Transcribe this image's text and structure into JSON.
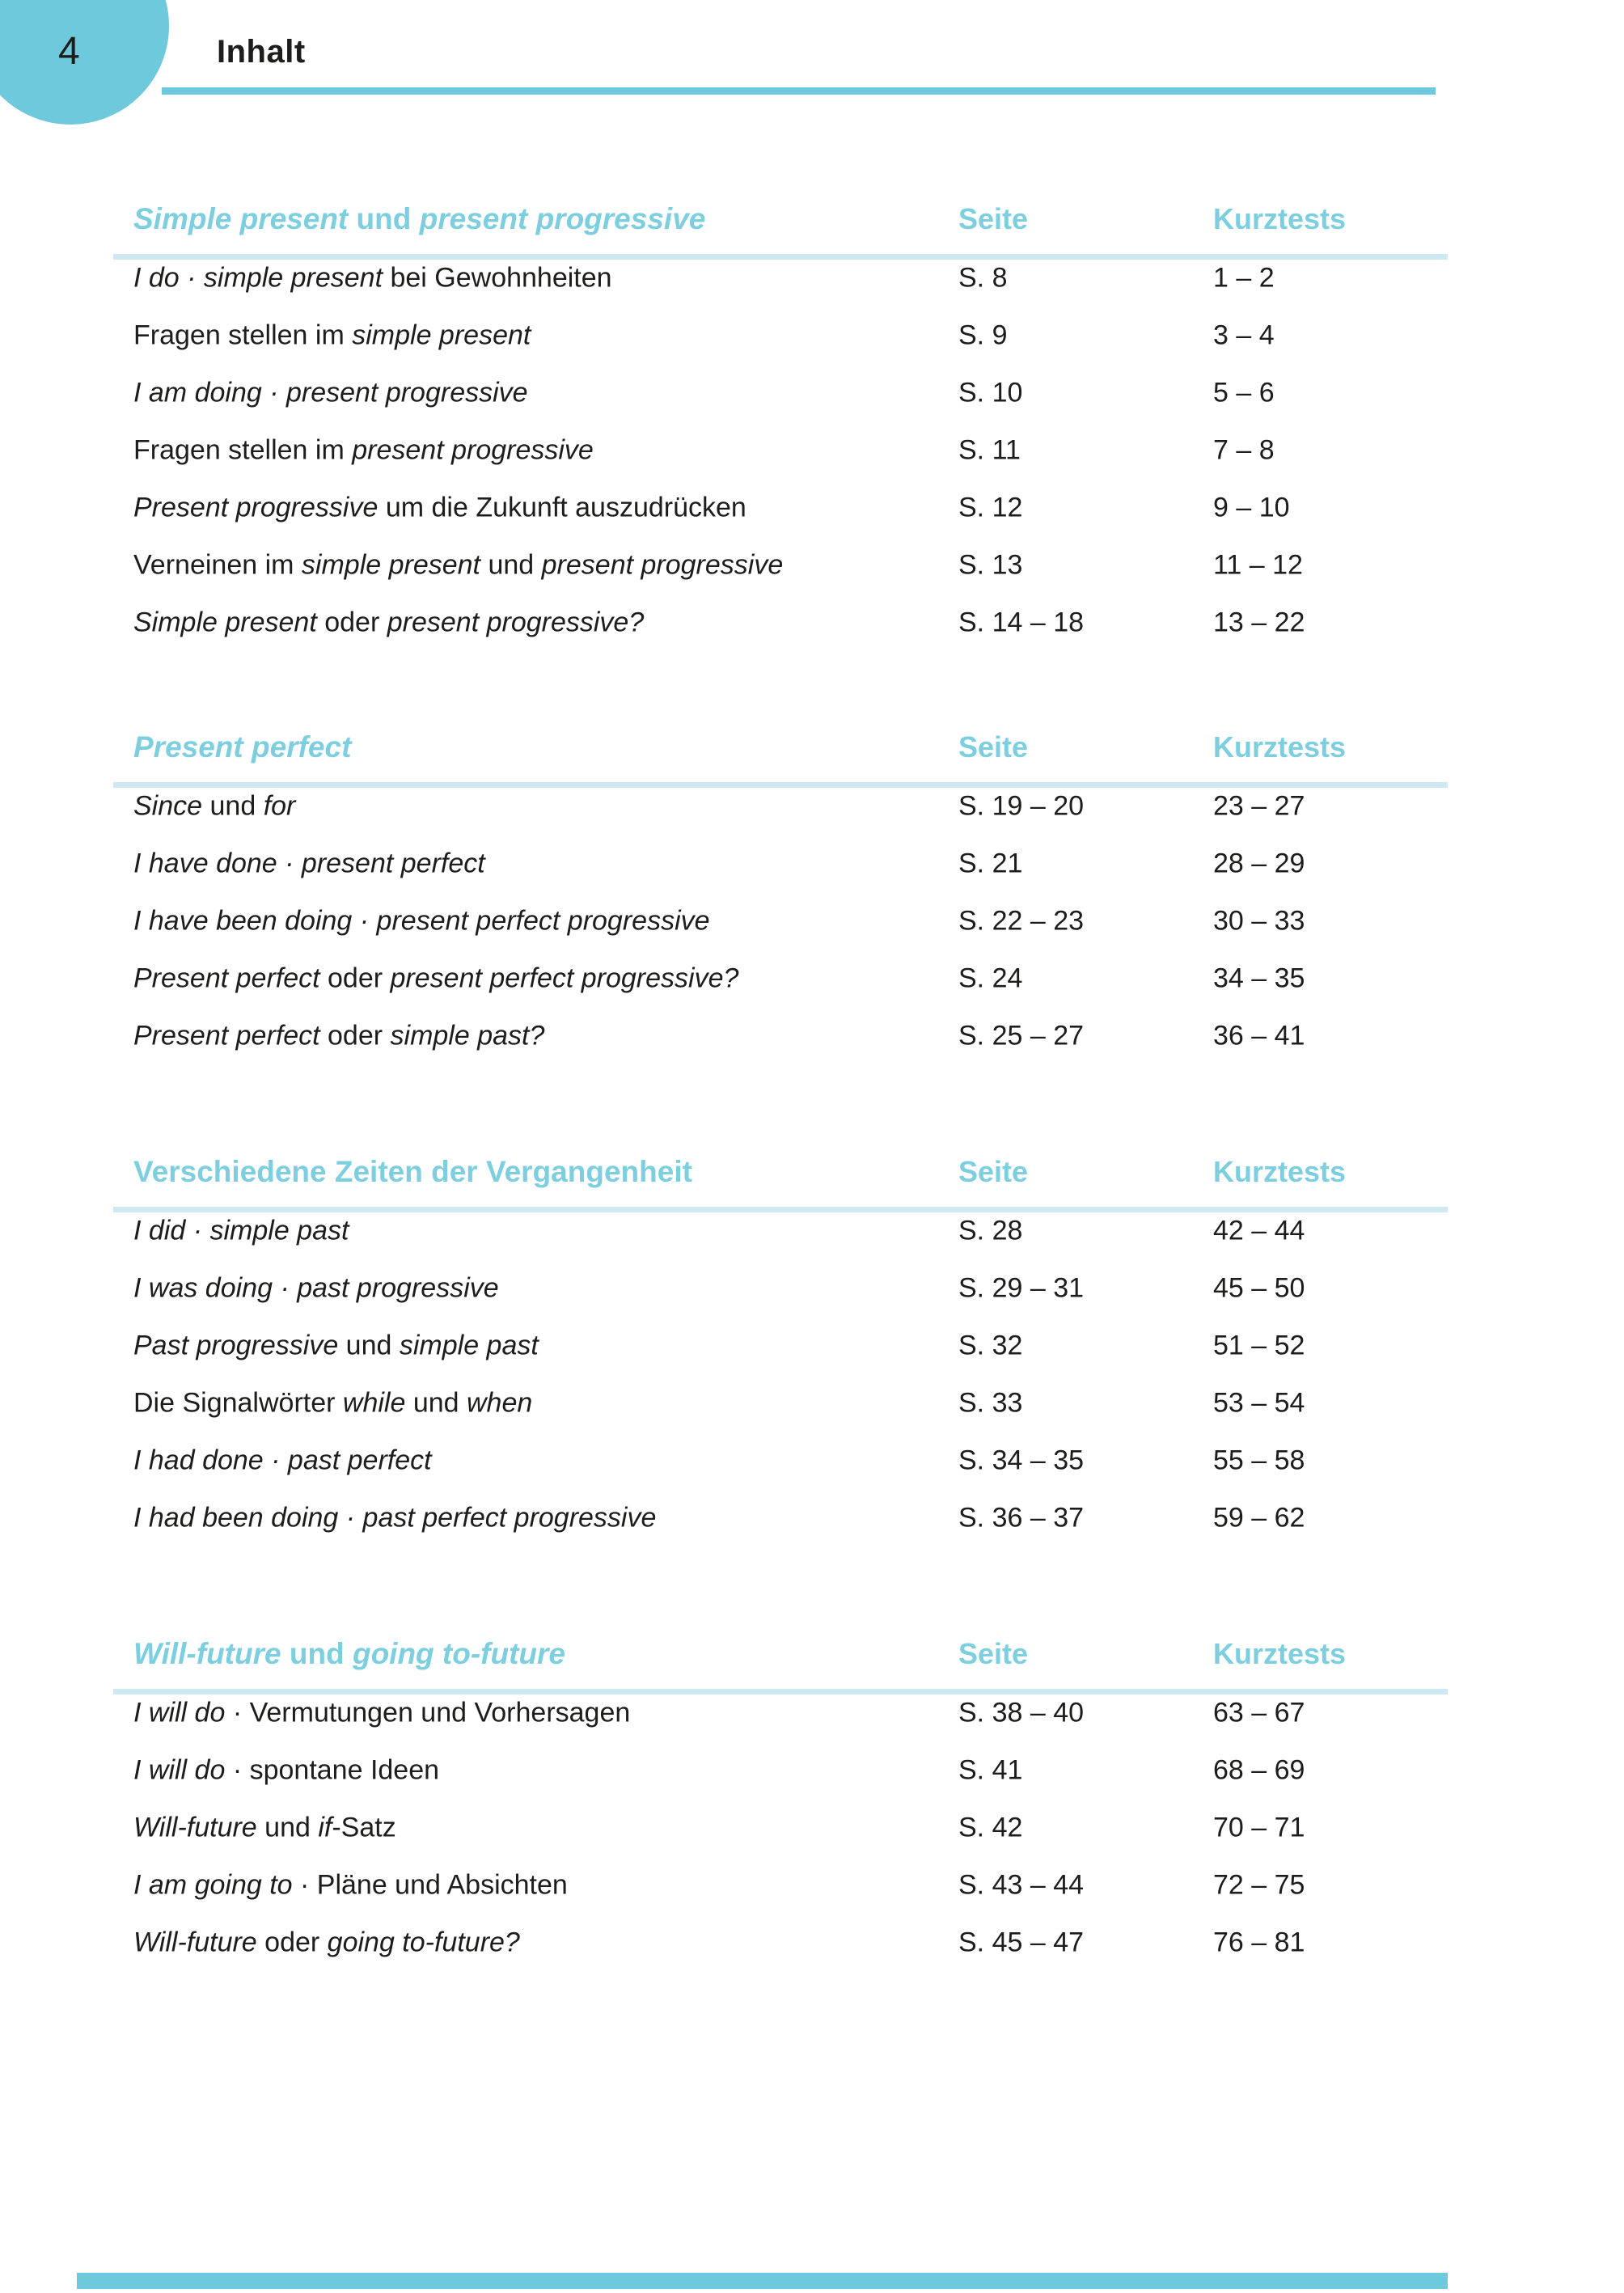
{
  "page": {
    "number": "4",
    "title": "Inhalt"
  },
  "column_headers": {
    "seite": "Seite",
    "kurztests": "Kurztests"
  },
  "colors": {
    "accent": "#6fc9dc",
    "accent_text": "#7dcfe0",
    "pale_line": "#cfe9f2",
    "text": "#1d1d1b"
  },
  "sections": [
    {
      "title": [
        {
          "t": "Simple present",
          "i": 1
        },
        {
          "t": " und ",
          "i": 0
        },
        {
          "t": "present progressive",
          "i": 1
        }
      ],
      "rows": [
        {
          "label": [
            {
              "t": "I do · simple present",
              "i": 1
            },
            {
              "t": " bei Gewohnheiten",
              "i": 0
            }
          ],
          "seite": "S. 8",
          "kurztests": "1 – 2"
        },
        {
          "label": [
            {
              "t": "Fragen stellen im ",
              "i": 0
            },
            {
              "t": "simple present",
              "i": 1
            }
          ],
          "seite": "S. 9",
          "kurztests": "3 – 4"
        },
        {
          "label": [
            {
              "t": "I am doing · present progressive",
              "i": 1
            }
          ],
          "seite": "S. 10",
          "kurztests": "5 – 6"
        },
        {
          "label": [
            {
              "t": "Fragen stellen im ",
              "i": 0
            },
            {
              "t": "present progressive",
              "i": 1
            }
          ],
          "seite": "S. 11",
          "kurztests": "7 – 8"
        },
        {
          "label": [
            {
              "t": "Present progressive",
              "i": 1
            },
            {
              "t": " um die Zukunft auszudrücken",
              "i": 0
            }
          ],
          "seite": "S. 12",
          "kurztests": "9 – 10"
        },
        {
          "label": [
            {
              "t": "Verneinen im ",
              "i": 0
            },
            {
              "t": "simple present",
              "i": 1
            },
            {
              "t": " und ",
              "i": 0
            },
            {
              "t": "present progressive",
              "i": 1
            }
          ],
          "seite": "S. 13",
          "kurztests": "11 – 12"
        },
        {
          "label": [
            {
              "t": "Simple present",
              "i": 1
            },
            {
              "t": " oder ",
              "i": 0
            },
            {
              "t": "present progressive?",
              "i": 1
            }
          ],
          "seite": "S. 14 – 18",
          "kurztests": "13 – 22"
        }
      ]
    },
    {
      "title": [
        {
          "t": "Present perfect",
          "i": 1
        }
      ],
      "rows": [
        {
          "label": [
            {
              "t": "Since",
              "i": 1
            },
            {
              "t": " und ",
              "i": 0
            },
            {
              "t": "for",
              "i": 1
            }
          ],
          "seite": "S. 19 – 20",
          "kurztests": "23 – 27"
        },
        {
          "label": [
            {
              "t": "I have done · present perfect",
              "i": 1
            }
          ],
          "seite": "S. 21",
          "kurztests": "28 – 29"
        },
        {
          "label": [
            {
              "t": "I have been doing · present perfect progressive",
              "i": 1
            }
          ],
          "seite": "S. 22 – 23",
          "kurztests": "30 – 33"
        },
        {
          "label": [
            {
              "t": "Present perfect",
              "i": 1
            },
            {
              "t": " oder ",
              "i": 0
            },
            {
              "t": "present perfect progressive?",
              "i": 1
            }
          ],
          "seite": "S. 24",
          "kurztests": "34 – 35"
        },
        {
          "label": [
            {
              "t": "Present perfect",
              "i": 1
            },
            {
              "t": " oder ",
              "i": 0
            },
            {
              "t": "simple past?",
              "i": 1
            }
          ],
          "seite": "S. 25 – 27",
          "kurztests": "36 – 41"
        }
      ]
    },
    {
      "title": [
        {
          "t": "Verschiedene Zeiten der Vergangenheit",
          "i": 0
        }
      ],
      "rows": [
        {
          "label": [
            {
              "t": "I did · simple past",
              "i": 1
            }
          ],
          "seite": "S. 28",
          "kurztests": "42 – 44"
        },
        {
          "label": [
            {
              "t": "I was doing · past progressive",
              "i": 1
            }
          ],
          "seite": "S. 29 – 31",
          "kurztests": "45 – 50"
        },
        {
          "label": [
            {
              "t": "Past progressive",
              "i": 1
            },
            {
              "t": " und ",
              "i": 0
            },
            {
              "t": "simple past",
              "i": 1
            }
          ],
          "seite": "S. 32",
          "kurztests": "51 – 52"
        },
        {
          "label": [
            {
              "t": "Die Signalwörter ",
              "i": 0
            },
            {
              "t": "while",
              "i": 1
            },
            {
              "t": " und ",
              "i": 0
            },
            {
              "t": "when",
              "i": 1
            }
          ],
          "seite": "S. 33",
          "kurztests": "53 – 54"
        },
        {
          "label": [
            {
              "t": "I had done · past perfect",
              "i": 1
            }
          ],
          "seite": "S. 34 – 35",
          "kurztests": "55 – 58"
        },
        {
          "label": [
            {
              "t": "I had been doing · past perfect progressive",
              "i": 1
            }
          ],
          "seite": "S. 36 – 37",
          "kurztests": "59 – 62"
        }
      ]
    },
    {
      "title": [
        {
          "t": "Will-future",
          "i": 1
        },
        {
          "t": " und ",
          "i": 0
        },
        {
          "t": "going to-future",
          "i": 1
        }
      ],
      "rows": [
        {
          "label": [
            {
              "t": "I will do",
              "i": 1
            },
            {
              "t": " · Vermutungen und Vorhersagen",
              "i": 0
            }
          ],
          "seite": "S. 38 – 40",
          "kurztests": "63 – 67"
        },
        {
          "label": [
            {
              "t": "I will do",
              "i": 1
            },
            {
              "t": " · spontane Ideen",
              "i": 0
            }
          ],
          "seite": "S. 41",
          "kurztests": "68 – 69"
        },
        {
          "label": [
            {
              "t": "Will-future",
              "i": 1
            },
            {
              "t": " und ",
              "i": 0
            },
            {
              "t": "if",
              "i": 1
            },
            {
              "t": "-Satz",
              "i": 0
            }
          ],
          "seite": "S. 42",
          "kurztests": "70 – 71"
        },
        {
          "label": [
            {
              "t": "I am going to",
              "i": 1
            },
            {
              "t": " · Pläne und Absichten",
              "i": 0
            }
          ],
          "seite": "S. 43 – 44",
          "kurztests": "72 – 75"
        },
        {
          "label": [
            {
              "t": "Will-future",
              "i": 1
            },
            {
              "t": " oder ",
              "i": 0
            },
            {
              "t": "going to-future?",
              "i": 1
            }
          ],
          "seite": "S. 45 – 47",
          "kurztests": "76 – 81"
        }
      ]
    }
  ]
}
